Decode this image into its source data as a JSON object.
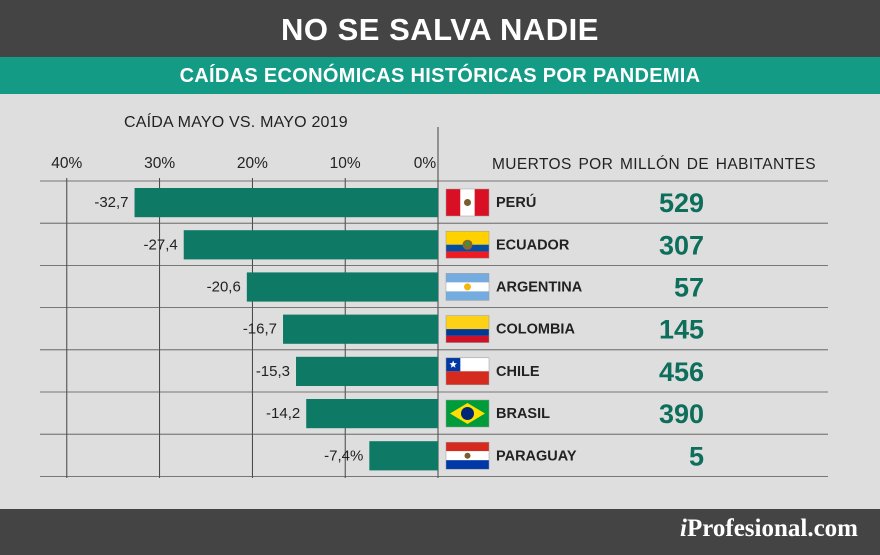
{
  "header": {
    "title": "NO SE SALVA NADIE",
    "subtitle": "CAÍDAS ECONÓMICAS HISTÓRICAS POR PANDEMIA"
  },
  "footer": {
    "brand_i": "i",
    "brand_rest": "Profesional.com"
  },
  "right_header": "MUERTOS POR MILLÓN DE HABITANTES",
  "colors": {
    "bar": "#0e7a66",
    "teal_text": "#0e6e5c",
    "title_bg": "#444444",
    "subtitle_bg": "#139b86",
    "panel_bg": "#dedede"
  },
  "chart_data": {
    "type": "bar",
    "orientation": "horizontal",
    "title": "CAÍDA MAYO VS. MAYO 2019",
    "axis_ticks": [
      "40%",
      "30%",
      "20%",
      "10%",
      "0%"
    ],
    "xlim": [
      -40,
      0
    ],
    "grid": true,
    "categories": [
      "PERÚ",
      "ECUADOR",
      "ARGENTINA",
      "COLOMBIA",
      "CHILE",
      "BRASIL",
      "PARAGUAY"
    ],
    "values": [
      -32.7,
      -27.4,
      -20.6,
      -16.7,
      -15.3,
      -14.2,
      -7.4
    ],
    "value_labels": [
      "-32,7",
      "-27,4",
      "-20,6",
      "-16,7",
      "-15,3",
      "-14,2",
      "-7,4%"
    ],
    "deaths_per_million": [
      "529",
      "307",
      "57",
      "145",
      "456",
      "390",
      "5"
    ],
    "flags": [
      "peru-flag",
      "ecuador-flag",
      "argentina-flag",
      "colombia-flag",
      "chile-flag",
      "brasil-flag",
      "paraguay-flag"
    ]
  }
}
